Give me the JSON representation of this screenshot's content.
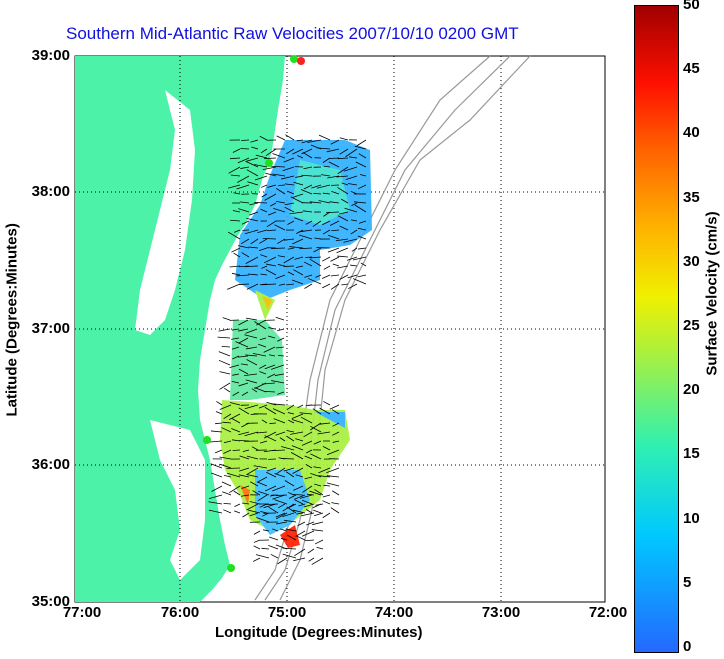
{
  "title": "Southern Mid-Atlantic Raw Velocities 2007/10/10 0200 GMT",
  "xlabel": "Longitude (Degrees:Minutes)",
  "ylabel": "Latitude (Degrees:Minutes)",
  "x_ticks": [
    "77:00",
    "76:00",
    "75:00",
    "74:00",
    "73:00",
    "72:00"
  ],
  "y_ticks": [
    "39:00",
    "38:00",
    "37:00",
    "36:00",
    "35:00"
  ],
  "colorbar": {
    "label": "Surface Velocity (cm/s)",
    "ticks": [
      "50",
      "45",
      "40",
      "35",
      "30",
      "25",
      "20",
      "15",
      "10",
      "5",
      "0"
    ]
  },
  "colors": {
    "land": "#4cf2a8",
    "title": "#1010e0"
  }
}
